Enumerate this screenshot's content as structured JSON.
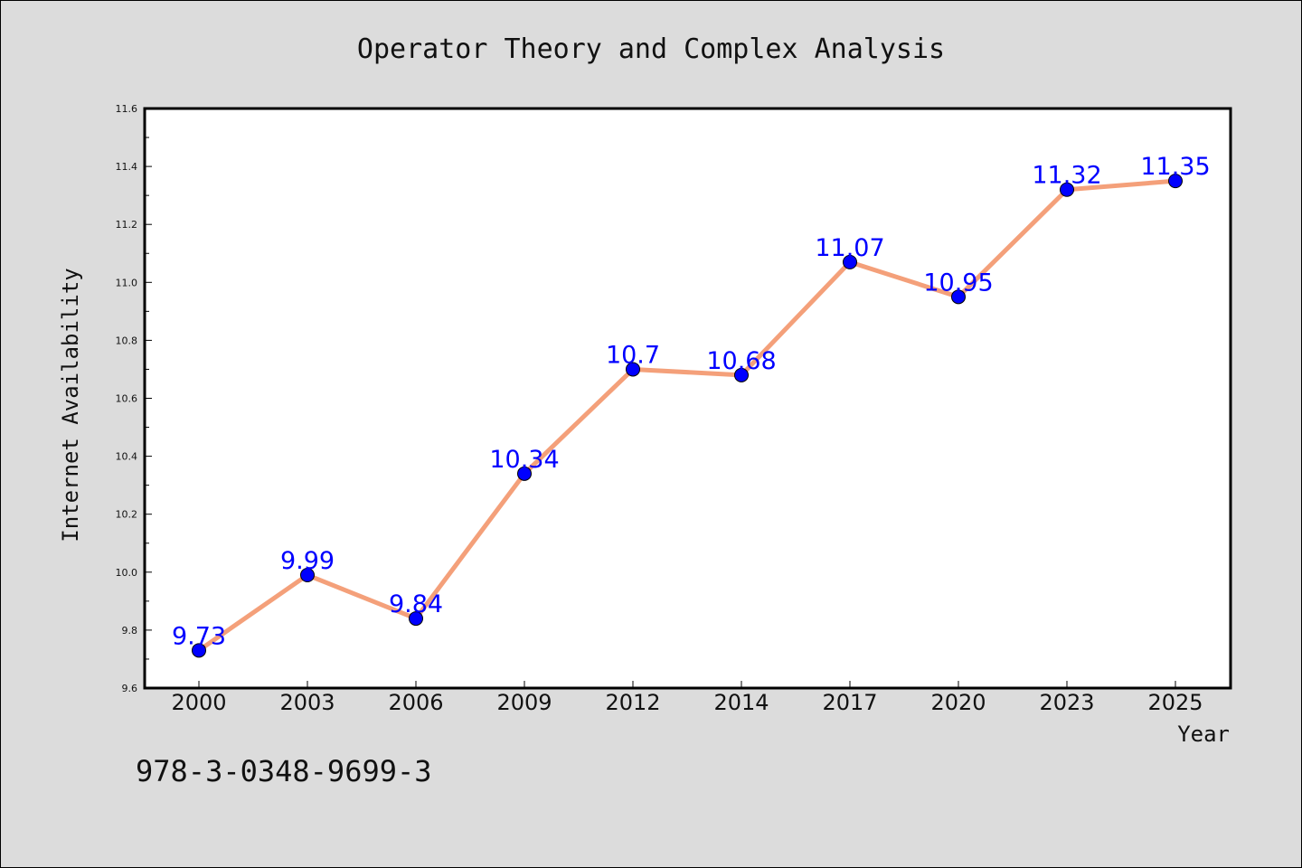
{
  "chart_data": {
    "type": "line",
    "title": "Operator Theory and Complex Analysis",
    "xlabel": "Year",
    "ylabel": "Internet Availability",
    "categories": [
      "2000",
      "2003",
      "2006",
      "2009",
      "2012",
      "2014",
      "2017",
      "2020",
      "2023",
      "2025"
    ],
    "series": [
      {
        "values": [
          9.73,
          9.99,
          9.84,
          10.34,
          10.7,
          10.68,
          11.07,
          10.95,
          11.32,
          11.35
        ],
        "data_labels": [
          "9.73",
          "9.99",
          "9.84",
          "10.34",
          "10.7",
          "10.68",
          "11.07",
          "10.95",
          "11.32",
          "11.35"
        ]
      }
    ],
    "ylim": [
      9.6,
      11.6
    ],
    "yticks": [
      "9.6",
      "9.8",
      "10.0",
      "10.2",
      "10.4",
      "10.6",
      "10.8",
      "11.0",
      "11.2",
      "11.4",
      "11.6"
    ],
    "grid": false,
    "colors": {
      "line": "#f4a07a",
      "marker": "#0000ff",
      "label": "#0000ff",
      "background": "#dcdcdc",
      "plot_background": "#ffffff"
    }
  },
  "footnote": "978-3-0348-9699-3"
}
